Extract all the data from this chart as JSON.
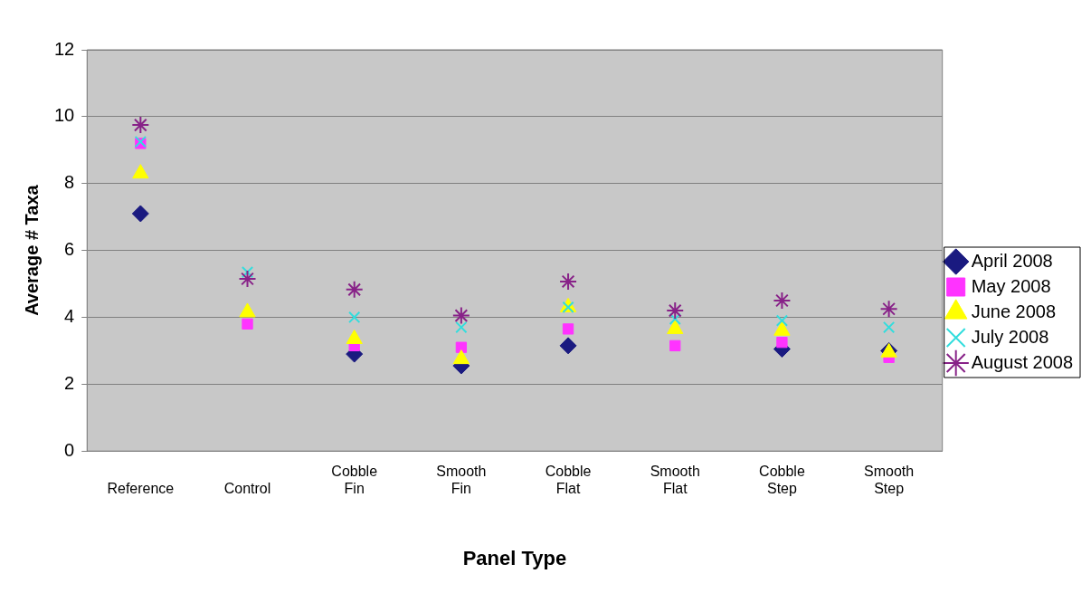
{
  "chart_data": {
    "type": "scatter",
    "xlabel": "Panel Type",
    "ylabel": "Average # Taxa",
    "categories": [
      "Reference",
      "Control",
      "Cobble Fin",
      "Smooth Fin",
      "Cobble Flat",
      "Smooth Flat",
      "Cobble Step",
      "Smooth Step"
    ],
    "ylim": [
      0,
      12
    ],
    "yticks": [
      0,
      2,
      4,
      6,
      8,
      10,
      12
    ],
    "grid": "y",
    "legend": "right",
    "series": [
      {
        "name": "April 2008",
        "color": "#1a1a80",
        "marker": "diamond",
        "values": [
          7.1,
          null,
          2.9,
          2.55,
          3.15,
          null,
          3.05,
          3.0
        ]
      },
      {
        "name": "May 2008",
        "color": "#ff33ff",
        "marker": "square",
        "values": [
          9.2,
          3.8,
          3.15,
          3.1,
          3.65,
          3.15,
          3.25,
          2.8
        ]
      },
      {
        "name": "June 2008",
        "color": "#ffff00",
        "marker": "triangle",
        "values": [
          8.3,
          4.15,
          3.35,
          2.75,
          4.3,
          3.65,
          3.6,
          2.95
        ]
      },
      {
        "name": "July 2008",
        "color": "#33dddd",
        "marker": "cross",
        "values": [
          9.25,
          5.35,
          4.0,
          3.7,
          4.3,
          3.95,
          3.9,
          3.7
        ]
      },
      {
        "name": "August 2008",
        "color": "#882288",
        "marker": "cross",
        "values": [
          9.75,
          5.15,
          4.83,
          4.05,
          5.07,
          4.2,
          4.5,
          4.25
        ]
      }
    ]
  }
}
